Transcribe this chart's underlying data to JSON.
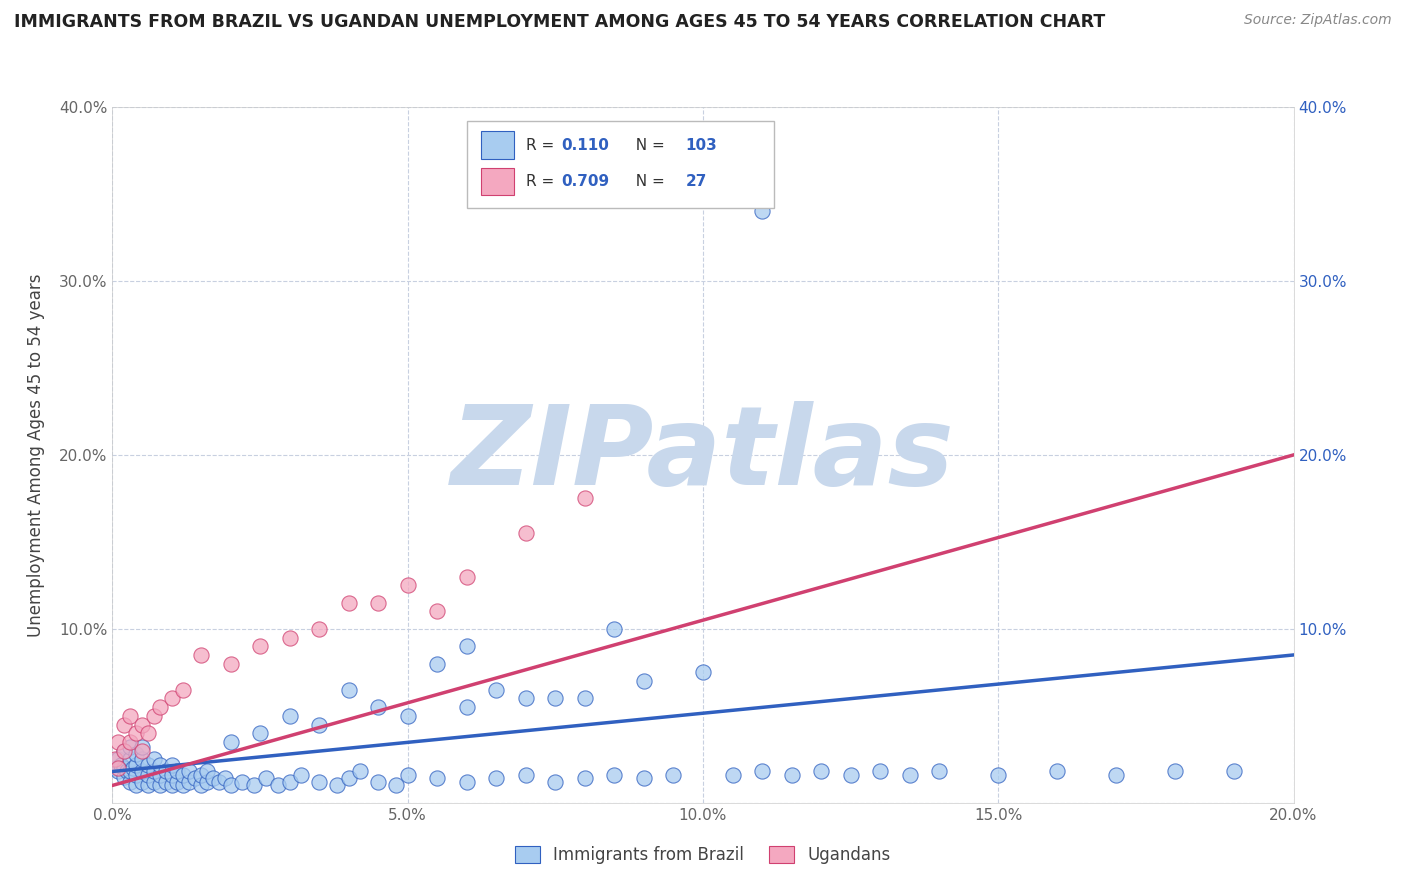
{
  "title": "IMMIGRANTS FROM BRAZIL VS UGANDAN UNEMPLOYMENT AMONG AGES 45 TO 54 YEARS CORRELATION CHART",
  "source": "Source: ZipAtlas.com",
  "ylabel": "Unemployment Among Ages 45 to 54 years",
  "xlabel_brazil": "Immigrants from Brazil",
  "xlabel_ugandan": "Ugandans",
  "xlim": [
    0,
    0.2
  ],
  "ylim": [
    0,
    0.4
  ],
  "xticks": [
    0.0,
    0.05,
    0.1,
    0.15,
    0.2
  ],
  "yticks": [
    0.0,
    0.1,
    0.2,
    0.3,
    0.4
  ],
  "xtick_labels": [
    "0.0%",
    "5.0%",
    "10.0%",
    "15.0%",
    "20.0%"
  ],
  "ytick_labels": [
    "",
    "10.0%",
    "20.0%",
    "30.0%",
    "40.0%"
  ],
  "right_ytick_labels": [
    "",
    "10.0%",
    "20.0%",
    "30.0%",
    "40.0%"
  ],
  "brazil_R": 0.11,
  "brazil_N": 103,
  "ugandan_R": 0.709,
  "ugandan_N": 27,
  "brazil_color": "#A8CCF0",
  "ugandan_color": "#F4A8C0",
  "brazil_line_color": "#3060C0",
  "ugandan_line_color": "#D04070",
  "watermark": "ZIPatlas",
  "watermark_color": "#C8D8EC",
  "background_color": "#FFFFFF",
  "grid_color": "#C8D0E0",
  "brazil_scatter_x": [
    0.0005,
    0.001,
    0.001,
    0.0015,
    0.002,
    0.002,
    0.002,
    0.0025,
    0.003,
    0.003,
    0.003,
    0.003,
    0.0035,
    0.004,
    0.004,
    0.004,
    0.004,
    0.005,
    0.005,
    0.005,
    0.005,
    0.006,
    0.006,
    0.006,
    0.007,
    0.007,
    0.007,
    0.008,
    0.008,
    0.008,
    0.009,
    0.009,
    0.01,
    0.01,
    0.01,
    0.011,
    0.011,
    0.012,
    0.012,
    0.013,
    0.013,
    0.014,
    0.015,
    0.015,
    0.016,
    0.016,
    0.017,
    0.018,
    0.019,
    0.02,
    0.022,
    0.024,
    0.026,
    0.028,
    0.03,
    0.032,
    0.035,
    0.038,
    0.04,
    0.042,
    0.045,
    0.048,
    0.05,
    0.055,
    0.06,
    0.06,
    0.065,
    0.07,
    0.075,
    0.08,
    0.08,
    0.085,
    0.09,
    0.095,
    0.1,
    0.105,
    0.11,
    0.115,
    0.12,
    0.125,
    0.13,
    0.135,
    0.14,
    0.15,
    0.16,
    0.17,
    0.18,
    0.19,
    0.06,
    0.04,
    0.05,
    0.07,
    0.09,
    0.03,
    0.025,
    0.055,
    0.035,
    0.045,
    0.065,
    0.075,
    0.02,
    0.085,
    0.11
  ],
  "brazil_scatter_y": [
    0.02,
    0.018,
    0.025,
    0.022,
    0.015,
    0.02,
    0.03,
    0.018,
    0.012,
    0.018,
    0.025,
    0.032,
    0.02,
    0.01,
    0.016,
    0.022,
    0.028,
    0.012,
    0.018,
    0.025,
    0.032,
    0.01,
    0.016,
    0.022,
    0.012,
    0.018,
    0.025,
    0.01,
    0.016,
    0.022,
    0.012,
    0.018,
    0.01,
    0.016,
    0.022,
    0.012,
    0.018,
    0.01,
    0.016,
    0.012,
    0.018,
    0.014,
    0.01,
    0.016,
    0.012,
    0.018,
    0.014,
    0.012,
    0.014,
    0.01,
    0.012,
    0.01,
    0.014,
    0.01,
    0.012,
    0.016,
    0.012,
    0.01,
    0.014,
    0.018,
    0.012,
    0.01,
    0.016,
    0.014,
    0.012,
    0.09,
    0.014,
    0.016,
    0.012,
    0.014,
    0.06,
    0.016,
    0.014,
    0.016,
    0.075,
    0.016,
    0.018,
    0.016,
    0.018,
    0.016,
    0.018,
    0.016,
    0.018,
    0.016,
    0.018,
    0.016,
    0.018,
    0.018,
    0.055,
    0.065,
    0.05,
    0.06,
    0.07,
    0.05,
    0.04,
    0.08,
    0.045,
    0.055,
    0.065,
    0.06,
    0.035,
    0.1,
    0.34
  ],
  "ugandan_scatter_x": [
    0.0005,
    0.001,
    0.001,
    0.002,
    0.002,
    0.003,
    0.003,
    0.004,
    0.005,
    0.005,
    0.006,
    0.007,
    0.008,
    0.01,
    0.012,
    0.015,
    0.02,
    0.025,
    0.03,
    0.035,
    0.04,
    0.045,
    0.05,
    0.055,
    0.06,
    0.07,
    0.08
  ],
  "ugandan_scatter_y": [
    0.025,
    0.02,
    0.035,
    0.03,
    0.045,
    0.035,
    0.05,
    0.04,
    0.03,
    0.045,
    0.04,
    0.05,
    0.055,
    0.06,
    0.065,
    0.085,
    0.08,
    0.09,
    0.095,
    0.1,
    0.115,
    0.115,
    0.125,
    0.11,
    0.13,
    0.155,
    0.175
  ],
  "brazil_line_x": [
    0.0,
    0.2
  ],
  "brazil_line_y": [
    0.018,
    0.085
  ],
  "ugandan_line_x": [
    0.0,
    0.2
  ],
  "ugandan_line_y": [
    0.01,
    0.2
  ]
}
